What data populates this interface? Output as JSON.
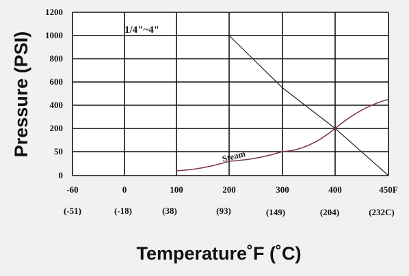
{
  "chart_data": {
    "type": "line",
    "ylabel": "Pressure (PSI)",
    "xlabel": "Temperature˚F (˚C)",
    "x_ticks": [
      "-60",
      "0",
      "100",
      "200",
      "300",
      "400",
      "450F"
    ],
    "x_ticks_c": [
      "(-51)",
      "(-18)",
      "(38)",
      "(93)",
      "(149)",
      "(204)",
      "(232C)"
    ],
    "y_ticks": [
      "0",
      "50",
      "200",
      "400",
      "600",
      "800",
      "1000",
      "1200"
    ],
    "size_annotation": "1/4\"~4\"",
    "grid": true,
    "series": [
      {
        "name": "",
        "color": "#222222",
        "points": [
          [
            200,
            1000
          ],
          [
            300,
            550
          ],
          [
            400,
            200
          ],
          [
            450,
            0
          ]
        ]
      },
      {
        "name": "Steam",
        "color": "#7a3a5a",
        "points": [
          [
            100,
            10
          ],
          [
            200,
            30
          ],
          [
            300,
            50
          ],
          [
            400,
            200
          ],
          [
            450,
            450
          ]
        ]
      }
    ]
  }
}
